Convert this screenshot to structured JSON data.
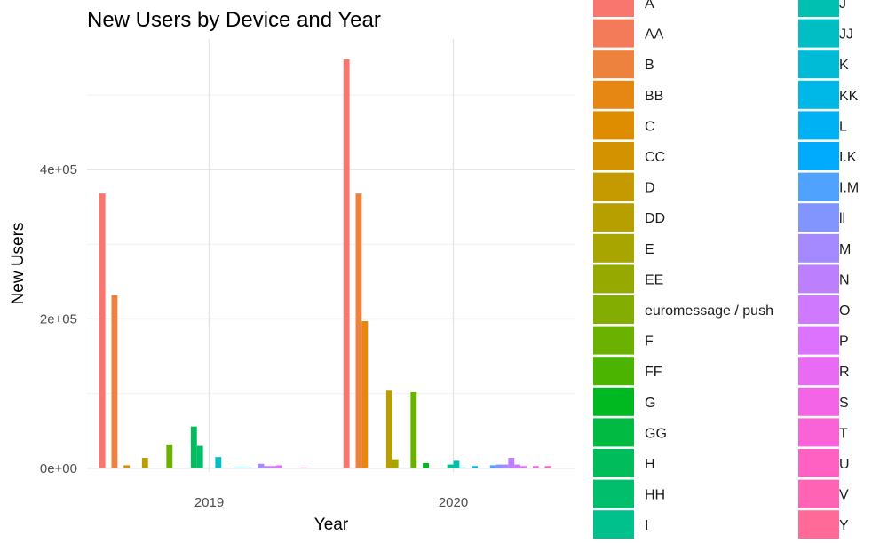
{
  "chart_data": {
    "type": "bar",
    "title": "New Users by Device and Year",
    "xlabel": "Year",
    "ylabel": "New Users",
    "categories": [
      "2019",
      "2020"
    ],
    "ylim": [
      -5000,
      575000
    ],
    "yticks": [
      0,
      200000,
      400000
    ],
    "ytick_labels": [
      "0e+00",
      "2e+05",
      "4e+05"
    ],
    "grid": true,
    "legend_position": "right",
    "series": [
      {
        "name": "A",
        "color": "#F8766D",
        "values": [
          368000,
          548000
        ]
      },
      {
        "name": "AA",
        "color": "#F37B59",
        "values": [
          0,
          0
        ]
      },
      {
        "name": "B",
        "color": "#ED813E",
        "values": [
          232000,
          368000
        ]
      },
      {
        "name": "BB",
        "color": "#E68613",
        "values": [
          0,
          197000
        ]
      },
      {
        "name": "C",
        "color": "#DE8C00",
        "values": [
          4000,
          0
        ]
      },
      {
        "name": "CC",
        "color": "#D39200",
        "values": [
          0,
          0
        ]
      },
      {
        "name": "D",
        "color": "#C49A00",
        "values": [
          0,
          0
        ]
      },
      {
        "name": "DD",
        "color": "#B79F00",
        "values": [
          14000,
          104000
        ]
      },
      {
        "name": "E",
        "color": "#A8A400",
        "values": [
          0,
          12000
        ]
      },
      {
        "name": "EE",
        "color": "#96A900",
        "values": [
          0,
          0
        ]
      },
      {
        "name": "euromessage / push",
        "color": "#83AD00",
        "values": [
          0,
          0
        ]
      },
      {
        "name": "F",
        "color": "#6BB100",
        "values": [
          32000,
          102000
        ]
      },
      {
        "name": "FF",
        "color": "#4BB400",
        "values": [
          0,
          0
        ]
      },
      {
        "name": "G",
        "color": "#00B81F",
        "values": [
          0,
          7000
        ]
      },
      {
        "name": "GG",
        "color": "#00BA42",
        "values": [
          0,
          0
        ]
      },
      {
        "name": "H",
        "color": "#00BC5A",
        "values": [
          56000,
          0
        ]
      },
      {
        "name": "HH",
        "color": "#00BE6C",
        "values": [
          30000,
          0
        ]
      },
      {
        "name": "I",
        "color": "#00C08B",
        "values": [
          0,
          5000
        ]
      },
      {
        "name": "J",
        "color": "#00C0B2",
        "values": [
          0,
          10000
        ]
      },
      {
        "name": "JJ",
        "color": "#00BEC3",
        "values": [
          15000,
          1000
        ]
      },
      {
        "name": "K",
        "color": "#00BBD5",
        "values": [
          0,
          0
        ]
      },
      {
        "name": "KK",
        "color": "#00B8E7",
        "values": [
          0,
          3000
        ]
      },
      {
        "name": "L",
        "color": "#00B2F3",
        "values": [
          1000,
          0
        ]
      },
      {
        "name": "I.K",
        "color": "#00ABFD",
        "values": [
          1000,
          0
        ]
      },
      {
        "name": "I.M",
        "color": "#4FA3FF",
        "values": [
          1000,
          4000
        ]
      },
      {
        "name": "ll",
        "color": "#8295FF",
        "values": [
          0,
          5000
        ]
      },
      {
        "name": "M",
        "color": "#A58AFF",
        "values": [
          6000,
          5000
        ]
      },
      {
        "name": "N",
        "color": "#BC80FF",
        "values": [
          3000,
          14000
        ]
      },
      {
        "name": "O",
        "color": "#CE79FF",
        "values": [
          3000,
          5000
        ]
      },
      {
        "name": "P",
        "color": "#DD72FF",
        "values": [
          4000,
          3000
        ]
      },
      {
        "name": "R",
        "color": "#E86BF3",
        "values": [
          0,
          0
        ]
      },
      {
        "name": "S",
        "color": "#F365E6",
        "values": [
          0,
          3000
        ]
      },
      {
        "name": "T",
        "color": "#FA62D7",
        "values": [
          0,
          0
        ]
      },
      {
        "name": "U",
        "color": "#FF61C3",
        "values": [
          1000,
          3000
        ]
      },
      {
        "name": "V",
        "color": "#FF63B3",
        "values": [
          0,
          0
        ]
      },
      {
        "name": "Y",
        "color": "#FF6A99",
        "values": [
          0,
          0
        ]
      }
    ]
  }
}
